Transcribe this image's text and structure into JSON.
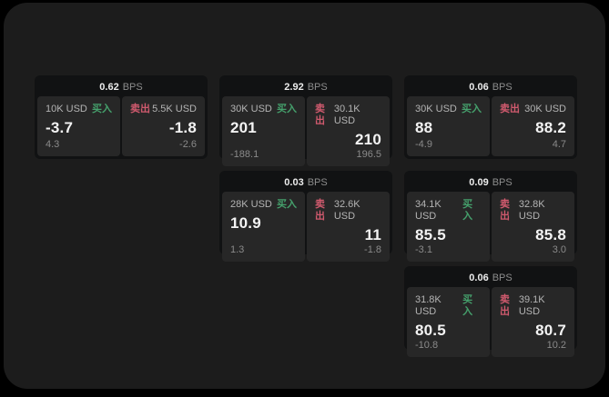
{
  "colors": {
    "page_bg": "#000000",
    "window_bg": "#1c1c1c",
    "card_bg": "#111213",
    "panel_bg": "#272727",
    "buy_accent": "#45a06c",
    "sell_accent": "#d05a6e",
    "price_text": "#f3f3f3",
    "muted_text": "#8a8a8a"
  },
  "labels": {
    "bps": "BPS",
    "buy": "买入",
    "sell": "卖出"
  },
  "cards": [
    {
      "col": 1,
      "row": 1,
      "bps": "0.62",
      "buy": {
        "amount": "10K USD",
        "price": "-3.7",
        "delta": "4.3"
      },
      "sell": {
        "amount": "5.5K USD",
        "price": "-1.8",
        "delta": "-2.6"
      }
    },
    {
      "col": 2,
      "row": 1,
      "bps": "2.92",
      "buy": {
        "amount": "30K USD",
        "price": "201",
        "delta": "-188.1"
      },
      "sell": {
        "amount": "30.1K USD",
        "price": "210",
        "delta": "196.5"
      }
    },
    {
      "col": 3,
      "row": 1,
      "bps": "0.06",
      "buy": {
        "amount": "30K USD",
        "price": "88",
        "delta": "-4.9"
      },
      "sell": {
        "amount": "30K USD",
        "price": "88.2",
        "delta": "4.7"
      }
    },
    {
      "col": 2,
      "row": 2,
      "bps": "0.03",
      "buy": {
        "amount": "28K USD",
        "price": "10.9",
        "delta": "1.3"
      },
      "sell": {
        "amount": "32.6K USD",
        "price": "11",
        "delta": "-1.8"
      }
    },
    {
      "col": 3,
      "row": 2,
      "bps": "0.09",
      "buy": {
        "amount": "34.1K USD",
        "price": "85.5",
        "delta": "-3.1"
      },
      "sell": {
        "amount": "32.8K USD",
        "price": "85.8",
        "delta": "3.0"
      }
    },
    {
      "col": 3,
      "row": 3,
      "bps": "0.06",
      "buy": {
        "amount": "31.8K USD",
        "price": "80.5",
        "delta": "-10.8"
      },
      "sell": {
        "amount": "39.1K USD",
        "price": "80.7",
        "delta": "10.2"
      }
    }
  ]
}
